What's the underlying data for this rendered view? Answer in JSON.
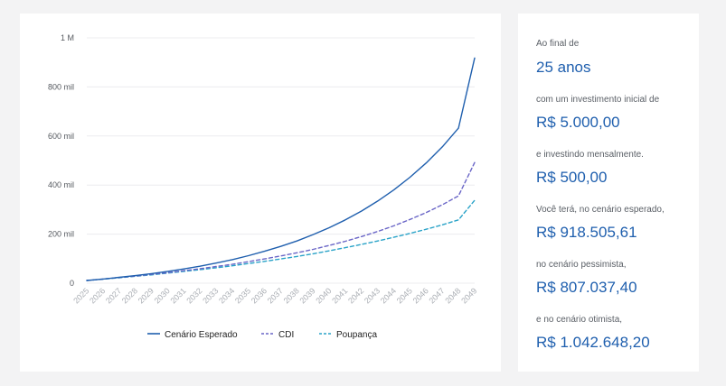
{
  "chart_data": {
    "type": "line",
    "categories": [
      "2025",
      "2026",
      "2027",
      "2028",
      "2029",
      "2030",
      "2031",
      "2032",
      "2033",
      "2034",
      "2035",
      "2036",
      "2037",
      "2038",
      "2039",
      "2040",
      "2041",
      "2042",
      "2043",
      "2044",
      "2045",
      "2046",
      "2047",
      "2048",
      "2049"
    ],
    "y_ticks": [
      {
        "value": 0,
        "label": "0"
      },
      {
        "value": 200000,
        "label": "200 mil"
      },
      {
        "value": 400000,
        "label": "400 mil"
      },
      {
        "value": 600000,
        "label": "600 mil"
      },
      {
        "value": 800000,
        "label": "800 mil"
      },
      {
        "value": 1000000,
        "label": "1 M"
      }
    ],
    "ylim": [
      0,
      1000000
    ],
    "grid": true,
    "legend_position": "bottom",
    "series": [
      {
        "name": "Cenário Esperado",
        "color": "#1f5fae",
        "dash": "solid",
        "values": [
          11000,
          17000,
          24000,
          31000,
          39000,
          48000,
          58000,
          69000,
          82000,
          96000,
          112000,
          130000,
          150000,
          172000,
          198000,
          226000,
          258000,
          294000,
          335000,
          380000,
          432000,
          490000,
          556000,
          632000,
          918000
        ]
      },
      {
        "name": "CDI",
        "color": "#6a66c7",
        "dash": "dashed",
        "values": [
          11000,
          17000,
          23000,
          29000,
          36000,
          43000,
          51000,
          59000,
          68000,
          77000,
          88000,
          99000,
          111000,
          124000,
          138000,
          154000,
          171000,
          190000,
          211000,
          234000,
          260000,
          288000,
          320000,
          356000,
          492000
        ]
      },
      {
        "name": "Poupança",
        "color": "#2aa3c8",
        "dash": "dashed",
        "values": [
          11000,
          16000,
          22000,
          28000,
          34000,
          41000,
          48000,
          55000,
          63000,
          71000,
          80000,
          89000,
          99000,
          109000,
          120000,
          132000,
          145000,
          158000,
          172000,
          187000,
          203000,
          220000,
          238000,
          258000,
          338000
        ]
      }
    ]
  },
  "summary": {
    "intro": "Ao final de",
    "period": "25 anos",
    "initial_label": "com um investimento inicial de",
    "initial_value": "R$ 5.000,00",
    "monthly_label": "e investindo mensalmente.",
    "monthly_value": "R$ 500,00",
    "expected_label": "Você terá, no cenário esperado,",
    "expected_value": "R$ 918.505,61",
    "pessimistic_label": "no cenário pessimista,",
    "pessimistic_value": "R$ 807.037,40",
    "optimistic_label": "e no cenário otimista,",
    "optimistic_value": "R$ 1.042.648,20"
  }
}
